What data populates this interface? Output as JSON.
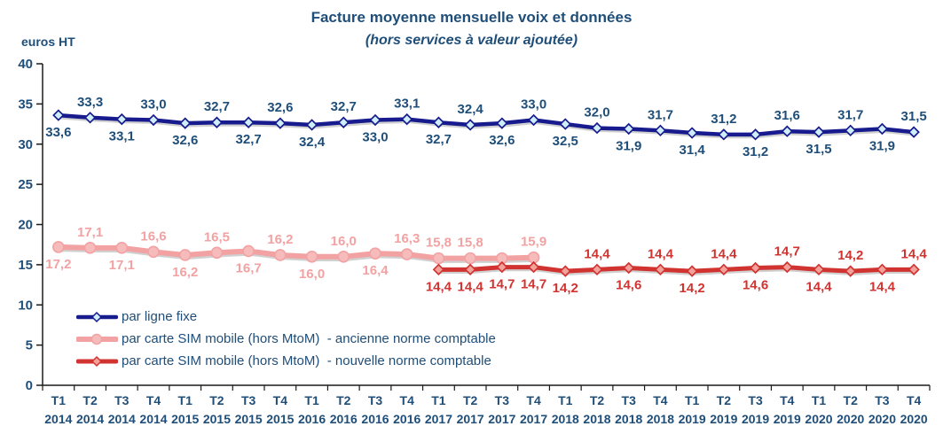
{
  "header": {
    "title": "Facture moyenne mensuelle voix et données",
    "subtitle": "(hors services à valeur ajoutée)"
  },
  "chart_data": {
    "type": "line",
    "title": "Facture moyenne mensuelle voix et données",
    "subtitle": "(hors services à valeur ajoutée)",
    "grid": "off",
    "legend_position": "bottom-left-inside",
    "colors": {
      "text": "#1F4E79",
      "axis": "#1a1a1a"
    },
    "y_axis": {
      "unit_label": "euros HT",
      "min": 0,
      "max": 40,
      "tick_step": 5,
      "ticks": [
        0,
        5,
        10,
        15,
        20,
        25,
        30,
        35,
        40
      ]
    },
    "categories": [
      {
        "quarter": "T1",
        "year": "2014"
      },
      {
        "quarter": "T2",
        "year": "2014"
      },
      {
        "quarter": "T3",
        "year": "2014"
      },
      {
        "quarter": "T4",
        "year": "2014"
      },
      {
        "quarter": "T1",
        "year": "2015"
      },
      {
        "quarter": "T2",
        "year": "2015"
      },
      {
        "quarter": "T3",
        "year": "2015"
      },
      {
        "quarter": "T4",
        "year": "2015"
      },
      {
        "quarter": "T1",
        "year": "2016"
      },
      {
        "quarter": "T2",
        "year": "2016"
      },
      {
        "quarter": "T3",
        "year": "2016"
      },
      {
        "quarter": "T4",
        "year": "2016"
      },
      {
        "quarter": "T1",
        "year": "2017"
      },
      {
        "quarter": "T2",
        "year": "2017"
      },
      {
        "quarter": "T3",
        "year": "2017"
      },
      {
        "quarter": "T4",
        "year": "2017"
      },
      {
        "quarter": "T1",
        "year": "2018"
      },
      {
        "quarter": "T2",
        "year": "2018"
      },
      {
        "quarter": "T3",
        "year": "2018"
      },
      {
        "quarter": "T4",
        "year": "2018"
      },
      {
        "quarter": "T1",
        "year": "2019"
      },
      {
        "quarter": "T2",
        "year": "2019"
      },
      {
        "quarter": "T3",
        "year": "2019"
      },
      {
        "quarter": "T4",
        "year": "2019"
      },
      {
        "quarter": "T1",
        "year": "2020"
      },
      {
        "quarter": "T2",
        "year": "2020"
      },
      {
        "quarter": "T3",
        "year": "2020"
      },
      {
        "quarter": "T4",
        "year": "2020"
      }
    ],
    "series": [
      {
        "name": "par carte SIM mobile (hors MtoM)  - ancienne norme comptable",
        "marker": "circle",
        "color": "#F2A2A2",
        "marker_fill": "#F6BCBC",
        "label_color": "#F2A2A2",
        "line_width": 6,
        "marker_radius": 6,
        "start_index": 0,
        "values": [
          17.2,
          17.1,
          17.1,
          16.6,
          16.2,
          16.5,
          16.7,
          16.2,
          16.0,
          16.0,
          16.4,
          16.3,
          15.8,
          15.8,
          15.8,
          15.9
        ],
        "labels": [
          "17,2",
          "17,1",
          "17,1",
          "16,6",
          "16,2",
          "16,5",
          "16,7",
          "16,2",
          "16,0",
          "16,0",
          "16,4",
          "16,3",
          "15,8",
          "15,8",
          "",
          "15,9"
        ],
        "label_positions": [
          "b",
          "a",
          "b",
          "a",
          "b",
          "a",
          "b",
          "a",
          "b",
          "a",
          "b",
          "a",
          "a",
          "a",
          "",
          "a"
        ]
      },
      {
        "name": "par ligne fixe",
        "marker": "diamond",
        "color": "#171B8D",
        "marker_fill": "#CFEEFA",
        "label_color": "#1F4E79",
        "line_width": 4.5,
        "marker_radius": 5.5,
        "start_index": 0,
        "values": [
          33.6,
          33.3,
          33.1,
          33.0,
          32.6,
          32.7,
          32.7,
          32.6,
          32.4,
          32.7,
          33.0,
          33.1,
          32.7,
          32.4,
          32.6,
          33.0,
          32.5,
          32.0,
          31.9,
          31.7,
          31.4,
          31.2,
          31.2,
          31.6,
          31.5,
          31.7,
          31.9,
          31.5
        ],
        "labels": [
          "33,6",
          "33,3",
          "33,1",
          "33,0",
          "32,6",
          "32,7",
          "32,7",
          "32,6",
          "32,4",
          "32,7",
          "33,0",
          "33,1",
          "32,7",
          "32,4",
          "32,6",
          "33,0",
          "32,5",
          "32,0",
          "31,9",
          "31,7",
          "31,4",
          "31,2",
          "31,2",
          "31,6",
          "31,5",
          "31,7",
          "31,9",
          "31,5"
        ],
        "label_positions": [
          "b",
          "a",
          "b",
          "a",
          "b",
          "a",
          "b",
          "a",
          "b",
          "a",
          "b",
          "a",
          "b",
          "a",
          "b",
          "a",
          "b",
          "a",
          "b",
          "a",
          "b",
          "a",
          "b",
          "a",
          "b",
          "a",
          "b",
          "a"
        ]
      },
      {
        "name": "par carte SIM mobile (hors MtoM)  - nouvelle norme comptable",
        "marker": "diamond",
        "color": "#D03330",
        "marker_fill": "#F2A29B",
        "label_color": "#D03330",
        "line_width": 5,
        "marker_radius": 5.5,
        "start_index": 12,
        "values": [
          14.4,
          14.4,
          14.7,
          14.7,
          14.2,
          14.4,
          14.6,
          14.4,
          14.2,
          14.4,
          14.6,
          14.7,
          14.4,
          14.2,
          14.4,
          14.4
        ],
        "labels": [
          "14,4",
          "14,4",
          "14,7",
          "14,7",
          "14,2",
          "14,4",
          "14,6",
          "14,4",
          "14,2",
          "14,4",
          "14,6",
          "14,7",
          "14,4",
          "14,2",
          "14,4",
          "14,4"
        ],
        "label_positions": [
          "b",
          "b",
          "b",
          "b",
          "b",
          "a",
          "b",
          "a",
          "b",
          "a",
          "b",
          "a",
          "b",
          "a",
          "b",
          "a"
        ]
      }
    ]
  }
}
